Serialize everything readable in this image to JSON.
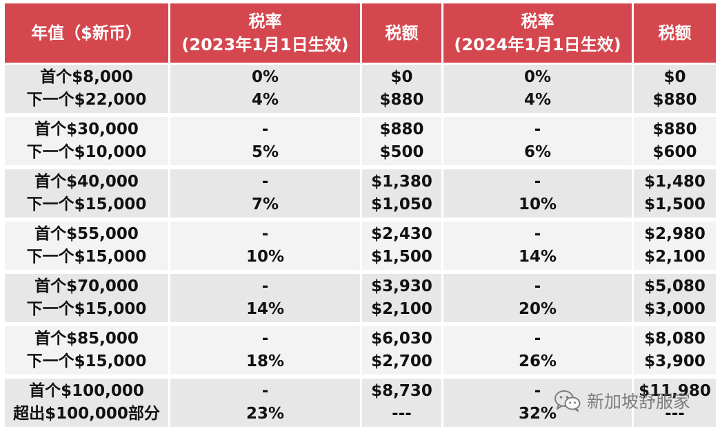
{
  "headers": [
    {
      "lines": [
        "年值（$新币）"
      ]
    },
    {
      "lines": [
        "税率",
        "(2023年1月1日生效)"
      ]
    },
    {
      "lines": [
        "税额"
      ]
    },
    {
      "lines": [
        "税率",
        "(2024年1月1日生效)"
      ]
    },
    {
      "lines": [
        "税额"
      ]
    }
  ],
  "rows": [
    {
      "band": [
        "首个$8,000",
        "下一个$22,000"
      ],
      "rate2023": [
        "0%",
        "4%"
      ],
      "tax2023": [
        "$0",
        "$880"
      ],
      "rate2024": [
        "0%",
        "4%"
      ],
      "tax2024": [
        "$0",
        "$880"
      ]
    },
    {
      "band": [
        "首个$30,000",
        "下一个$10,000"
      ],
      "rate2023": [
        "-",
        "5%"
      ],
      "tax2023": [
        "$880",
        "$500"
      ],
      "rate2024": [
        "-",
        "6%"
      ],
      "tax2024": [
        "$880",
        "$600"
      ]
    },
    {
      "band": [
        "首个$40,000",
        "下一个$15,000"
      ],
      "rate2023": [
        "-",
        "7%"
      ],
      "tax2023": [
        "$1,380",
        "$1,050"
      ],
      "rate2024": [
        "-",
        "10%"
      ],
      "tax2024": [
        "$1,480",
        "$1,500"
      ]
    },
    {
      "band": [
        "首个$55,000",
        "下一个$15,000"
      ],
      "rate2023": [
        "-",
        "10%"
      ],
      "tax2023": [
        "$2,430",
        "$1,500"
      ],
      "rate2024": [
        "-",
        "14%"
      ],
      "tax2024": [
        "$2,980",
        "$2,100"
      ]
    },
    {
      "band": [
        "首个$70,000",
        "下一个$15,000"
      ],
      "rate2023": [
        "-",
        "14%"
      ],
      "tax2023": [
        "$3,930",
        "$2,100"
      ],
      "rate2024": [
        "-",
        "20%"
      ],
      "tax2024": [
        "$5,080",
        "$3,000"
      ]
    },
    {
      "band": [
        "首个$85,000",
        "下一个$15,000"
      ],
      "rate2023": [
        "-",
        "18%"
      ],
      "tax2023": [
        "$6,030",
        "$2,700"
      ],
      "rate2024": [
        "-",
        "26%"
      ],
      "tax2024": [
        "$8,080",
        "$3,900"
      ]
    },
    {
      "band": [
        "首个$100,000",
        "超出$100,000部分"
      ],
      "rate2023": [
        "-",
        "23%"
      ],
      "tax2023": [
        "$8,730",
        "---"
      ],
      "rate2024": [
        "-",
        "32%"
      ],
      "tax2024": [
        "$11,980",
        "---"
      ]
    }
  ],
  "watermark": {
    "icon": "wechat-icon",
    "text": "新加坡舒服家"
  },
  "colors": {
    "header_bg": "#d5474e",
    "row_dark": "#e7e7e7",
    "row_light": "#f3f3f3"
  }
}
